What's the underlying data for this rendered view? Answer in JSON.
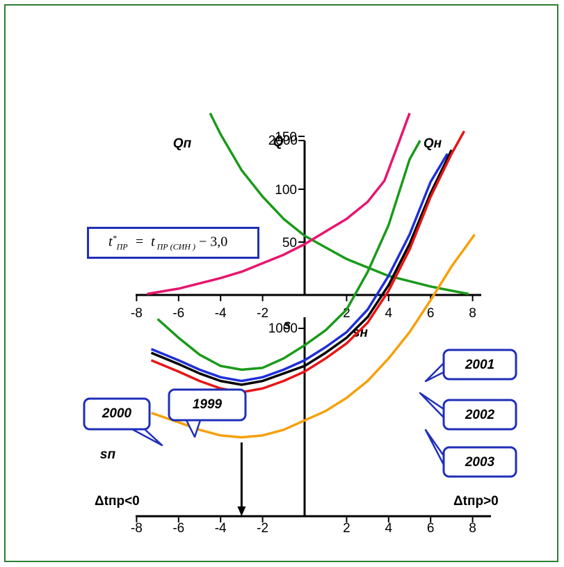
{
  "formula": "t*ПР = tПР (СИН) − 3,0",
  "chart_data": [
    {
      "type": "line",
      "title": "",
      "ylabel": "Q",
      "xlim": [
        -8,
        8
      ],
      "ylim": [
        0,
        170
      ],
      "x_ticks": [
        -8,
        -6,
        -4,
        -2,
        2,
        4,
        6,
        8
      ],
      "y_ticks": [
        50,
        100,
        150
      ],
      "series": [
        {
          "name": "Qп",
          "color": "#1a9a1a",
          "points": [
            [
              -4.5,
              172
            ],
            [
              -4,
              152
            ],
            [
              -3,
              118
            ],
            [
              -2,
              93
            ],
            [
              -1,
              72
            ],
            [
              0,
              56
            ],
            [
              1,
              45
            ],
            [
              2,
              34
            ],
            [
              3,
              26
            ],
            [
              4,
              18
            ],
            [
              5,
              13
            ],
            [
              6,
              8
            ],
            [
              7,
              4
            ],
            [
              7.8,
              1
            ]
          ]
        },
        {
          "name": "Qн",
          "color": "#e8146e",
          "points": [
            [
              -7.5,
              1
            ],
            [
              -6,
              6
            ],
            [
              -4,
              16
            ],
            [
              -3,
              22
            ],
            [
              -2,
              30
            ],
            [
              -1,
              38
            ],
            [
              0,
              48
            ],
            [
              1,
              60
            ],
            [
              2,
              72
            ],
            [
              3,
              88
            ],
            [
              3.8,
              108
            ],
            [
              4.5,
              145
            ],
            [
              5,
              172
            ]
          ]
        }
      ]
    },
    {
      "type": "line",
      "title": "",
      "ylabel": "s",
      "xlim": [
        -8,
        8
      ],
      "ylim": [
        0,
        2100
      ],
      "x_ticks": [
        -8,
        -6,
        -4,
        -2,
        2,
        4,
        6,
        8
      ],
      "y_ticks": [
        1000,
        2000
      ],
      "axis_labels": {
        "left": "sп",
        "right": "sн",
        "neg": "Δtпр<0",
        "pos": "Δtпр>0"
      },
      "annotation_arrow_x": -3,
      "series": [
        {
          "name": "1999",
          "color": "#1a9a1a",
          "points": [
            [
              -7,
              1050
            ],
            [
              -6,
              950
            ],
            [
              -5,
              860
            ],
            [
              -4,
              800
            ],
            [
              -3,
              780
            ],
            [
              -2,
              790
            ],
            [
              -1,
              840
            ],
            [
              0,
              910
            ],
            [
              1,
              990
            ],
            [
              2,
              1100
            ],
            [
              3,
              1300
            ],
            [
              4,
              1550
            ],
            [
              5,
              1900
            ],
            [
              5.5,
              2000
            ]
          ]
        },
        {
          "name": "2000",
          "color": "#000000",
          "points": [
            [
              -7.3,
              870
            ],
            [
              -6,
              810
            ],
            [
              -5,
              760
            ],
            [
              -4,
              720
            ],
            [
              -3,
              700
            ],
            [
              -2,
              720
            ],
            [
              -1,
              760
            ],
            [
              0,
              800
            ],
            [
              1,
              870
            ],
            [
              2,
              950
            ],
            [
              3,
              1060
            ],
            [
              4,
              1230
            ],
            [
              5,
              1450
            ],
            [
              6,
              1720
            ],
            [
              7,
              1950
            ]
          ]
        },
        {
          "name": "2001",
          "color": "#1f2fd8",
          "points": [
            [
              -7.3,
              890
            ],
            [
              -6,
              830
            ],
            [
              -5,
              780
            ],
            [
              -4,
              740
            ],
            [
              -3,
              720
            ],
            [
              -2,
              740
            ],
            [
              -1,
              780
            ],
            [
              0,
              830
            ],
            [
              1,
              900
            ],
            [
              2,
              980
            ],
            [
              3,
              1100
            ],
            [
              4,
              1280
            ],
            [
              5,
              1500
            ],
            [
              6,
              1780
            ],
            [
              6.8,
              1930
            ]
          ]
        },
        {
          "name": "2002",
          "color": "#e81414",
          "points": [
            [
              -7.3,
              830
            ],
            [
              -6,
              770
            ],
            [
              -5,
              720
            ],
            [
              -4,
              680
            ],
            [
              -3,
              660
            ],
            [
              -2,
              680
            ],
            [
              -1,
              720
            ],
            [
              0,
              770
            ],
            [
              1,
              840
            ],
            [
              2,
              920
            ],
            [
              3,
              1030
            ],
            [
              4,
              1200
            ],
            [
              5,
              1420
            ],
            [
              6,
              1700
            ],
            [
              7,
              1930
            ],
            [
              7.6,
              2050
            ]
          ]
        },
        {
          "name": "2003",
          "color": "#f5a00a",
          "points": [
            [
              -7.3,
              550
            ],
            [
              -6,
              500
            ],
            [
              -5,
              460
            ],
            [
              -4,
              430
            ],
            [
              -3,
              420
            ],
            [
              -2,
              430
            ],
            [
              -1,
              460
            ],
            [
              0,
              510
            ],
            [
              1,
              560
            ],
            [
              2,
              630
            ],
            [
              3,
              720
            ],
            [
              4,
              840
            ],
            [
              5,
              980
            ],
            [
              6,
              1150
            ],
            [
              7,
              1330
            ],
            [
              8.1,
              1500
            ]
          ]
        }
      ]
    }
  ]
}
